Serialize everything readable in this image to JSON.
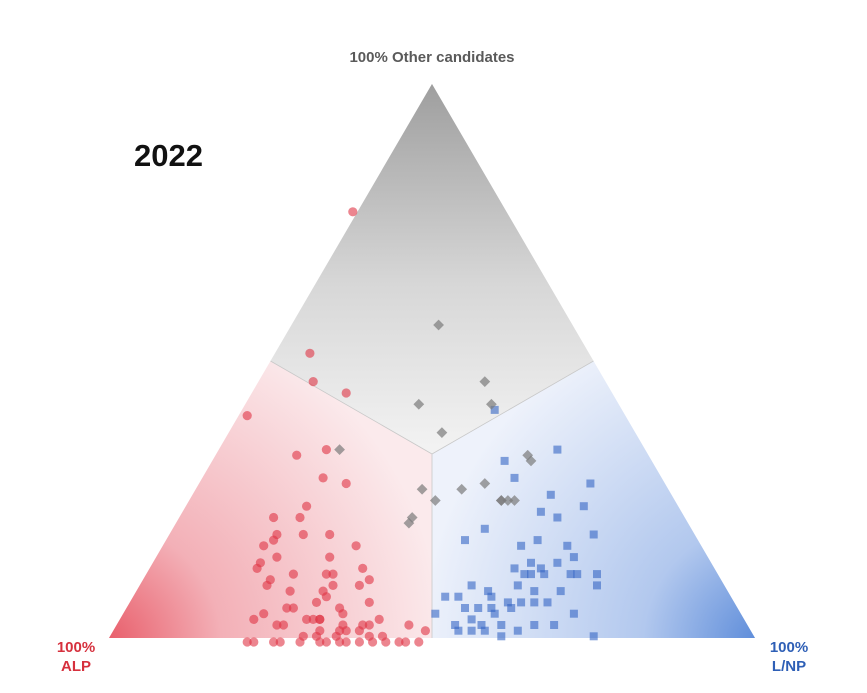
{
  "year": "2022",
  "vertices": {
    "top": "100% Other candidates",
    "left_line1": "100%",
    "left_line2": "ALP",
    "right_line1": "100%",
    "right_line2": "L/NP"
  },
  "colors": {
    "alp": "#e03344",
    "lnp": "#3566c4",
    "other": "#7a7a7a"
  },
  "chart_data": {
    "type": "scatter",
    "title": "2022",
    "coordinate_system": "ternary",
    "axes": [
      "ALP share",
      "L/NP share",
      "Other candidates share"
    ],
    "ranges": [
      [
        0,
        1
      ],
      [
        0,
        1
      ],
      [
        0,
        1
      ]
    ],
    "series": [
      {
        "name": "ALP",
        "marker": "circle",
        "points": [
          [
            0.24,
            0.0,
            0.76
          ],
          [
            0.45,
            0.09,
            0.46
          ],
          [
            0.43,
            0.06,
            0.51
          ],
          [
            0.58,
            0.02,
            0.4
          ],
          [
            0.41,
            0.15,
            0.44
          ],
          [
            0.54,
            0.13,
            0.33
          ],
          [
            0.49,
            0.17,
            0.34
          ],
          [
            0.52,
            0.19,
            0.29
          ],
          [
            0.49,
            0.23,
            0.28
          ],
          [
            0.57,
            0.19,
            0.24
          ],
          [
            0.59,
            0.19,
            0.22
          ],
          [
            0.63,
            0.15,
            0.22
          ],
          [
            0.6,
            0.21,
            0.19
          ],
          [
            0.64,
            0.17,
            0.19
          ],
          [
            0.65,
            0.17,
            0.18
          ],
          [
            0.56,
            0.25,
            0.19
          ],
          [
            0.67,
            0.16,
            0.17
          ],
          [
            0.53,
            0.3,
            0.17
          ],
          [
            0.58,
            0.27,
            0.15
          ],
          [
            0.66,
            0.19,
            0.15
          ],
          [
            0.69,
            0.17,
            0.14
          ],
          [
            0.7,
            0.17,
            0.13
          ],
          [
            0.54,
            0.33,
            0.13
          ],
          [
            0.59,
            0.29,
            0.12
          ],
          [
            0.65,
            0.23,
            0.12
          ],
          [
            0.6,
            0.28,
            0.12
          ],
          [
            0.69,
            0.2,
            0.11
          ],
          [
            0.54,
            0.35,
            0.11
          ],
          [
            0.6,
            0.3,
            0.1
          ],
          [
            0.7,
            0.2,
            0.1
          ],
          [
            0.56,
            0.34,
            0.1
          ],
          [
            0.67,
            0.24,
            0.09
          ],
          [
            0.62,
            0.29,
            0.09
          ],
          [
            0.62,
            0.3,
            0.08
          ],
          [
            0.64,
            0.29,
            0.07
          ],
          [
            0.56,
            0.37,
            0.07
          ],
          [
            0.61,
            0.33,
            0.06
          ],
          [
            0.69,
            0.25,
            0.06
          ],
          [
            0.61,
            0.34,
            0.05
          ],
          [
            0.73,
            0.22,
            0.05
          ],
          [
            0.75,
            0.21,
            0.04
          ],
          [
            0.67,
            0.29,
            0.04
          ],
          [
            0.56,
            0.4,
            0.04
          ],
          [
            0.65,
            0.31,
            0.04
          ],
          [
            0.72,
            0.25,
            0.03
          ],
          [
            0.52,
            0.45,
            0.03
          ],
          [
            0.58,
            0.39,
            0.03
          ],
          [
            0.5,
            0.48,
            0.02
          ],
          [
            0.62,
            0.36,
            0.02
          ],
          [
            0.67,
            0.32,
            0.01
          ],
          [
            0.64,
            0.35,
            0.01
          ],
          [
            0.59,
            0.41,
            0.0
          ],
          [
            0.54,
            0.46,
            0.0
          ],
          [
            0.57,
            0.43,
            0.0
          ],
          [
            0.61,
            0.39,
            0.0
          ],
          [
            0.66,
            0.34,
            0.0
          ],
          [
            0.7,
            0.3,
            0.0
          ],
          [
            0.74,
            0.26,
            0.0
          ],
          [
            0.77,
            0.23,
            0.0
          ],
          [
            0.64,
            0.36,
            0.0
          ],
          [
            0.67,
            0.33,
            0.0
          ],
          [
            0.55,
            0.45,
            0.0
          ],
          [
            0.52,
            0.48,
            0.0
          ],
          [
            0.63,
            0.37,
            0.0
          ],
          [
            0.73,
            0.27,
            0.0
          ],
          [
            0.78,
            0.22,
            0.0
          ],
          [
            0.66,
            0.32,
            0.02
          ],
          [
            0.62,
            0.35,
            0.03
          ],
          [
            0.59,
            0.38,
            0.03
          ],
          [
            0.65,
            0.31,
            0.04
          ],
          [
            0.71,
            0.26,
            0.03
          ],
          [
            0.63,
            0.35,
            0.02
          ],
          [
            0.59,
            0.4,
            0.01
          ],
          [
            0.69,
            0.3,
            0.01
          ],
          [
            0.57,
            0.42,
            0.01
          ],
          [
            0.6,
            0.38,
            0.02
          ],
          [
            0.66,
            0.3,
            0.04
          ],
          [
            0.68,
            0.26,
            0.06
          ]
        ]
      },
      {
        "name": "L/NP",
        "marker": "square",
        "points": [
          [
            0.2,
            0.39,
            0.41
          ],
          [
            0.14,
            0.52,
            0.34
          ],
          [
            0.23,
            0.45,
            0.32
          ],
          [
            0.12,
            0.6,
            0.28
          ],
          [
            0.23,
            0.48,
            0.29
          ],
          [
            0.19,
            0.55,
            0.26
          ],
          [
            0.15,
            0.61,
            0.24
          ],
          [
            0.22,
            0.55,
            0.23
          ],
          [
            0.2,
            0.58,
            0.22
          ],
          [
            0.32,
            0.48,
            0.2
          ],
          [
            0.16,
            0.65,
            0.19
          ],
          [
            0.36,
            0.46,
            0.18
          ],
          [
            0.25,
            0.57,
            0.18
          ],
          [
            0.28,
            0.55,
            0.17
          ],
          [
            0.21,
            0.64,
            0.15
          ],
          [
            0.28,
            0.58,
            0.14
          ],
          [
            0.31,
            0.56,
            0.13
          ],
          [
            0.19,
            0.69,
            0.12
          ],
          [
            0.23,
            0.65,
            0.12
          ],
          [
            0.39,
            0.51,
            0.1
          ],
          [
            0.32,
            0.58,
            0.1
          ],
          [
            0.2,
            0.7,
            0.1
          ],
          [
            0.3,
            0.61,
            0.09
          ],
          [
            0.37,
            0.54,
            0.09
          ],
          [
            0.44,
            0.48,
            0.08
          ],
          [
            0.29,
            0.64,
            0.07
          ],
          [
            0.4,
            0.54,
            0.06
          ],
          [
            0.35,
            0.59,
            0.06
          ],
          [
            0.38,
            0.57,
            0.05
          ],
          [
            0.26,
            0.69,
            0.05
          ],
          [
            0.42,
            0.54,
            0.04
          ],
          [
            0.3,
            0.67,
            0.03
          ],
          [
            0.45,
            0.53,
            0.02
          ],
          [
            0.36,
            0.62,
            0.02
          ],
          [
            0.39,
            0.6,
            0.01
          ],
          [
            0.25,
            0.74,
            0.01
          ],
          [
            0.43,
            0.55,
            0.02
          ],
          [
            0.38,
            0.59,
            0.03
          ],
          [
            0.42,
            0.52,
            0.06
          ],
          [
            0.47,
            0.48,
            0.05
          ],
          [
            0.41,
            0.56,
            0.03
          ],
          [
            0.33,
            0.64,
            0.03
          ],
          [
            0.45,
            0.52,
            0.03
          ],
          [
            0.41,
            0.57,
            0.02
          ],
          [
            0.26,
            0.65,
            0.09
          ],
          [
            0.38,
            0.56,
            0.06
          ],
          [
            0.31,
            0.62,
            0.07
          ],
          [
            0.21,
            0.62,
            0.17
          ],
          [
            0.27,
            0.6,
            0.13
          ],
          [
            0.29,
            0.59,
            0.12
          ],
          [
            0.24,
            0.62,
            0.14
          ],
          [
            0.27,
            0.61,
            0.12
          ],
          [
            0.33,
            0.6,
            0.07
          ],
          [
            0.35,
            0.58,
            0.07
          ],
          [
            0.22,
            0.66,
            0.12
          ],
          [
            0.3,
            0.58,
            0.12
          ],
          [
            0.42,
            0.5,
            0.08
          ],
          [
            0.37,
            0.55,
            0.08
          ]
        ]
      },
      {
        "name": "Other candidates",
        "marker": "diamond",
        "points": [
          [
            0.3,
            0.33,
            0.37
          ],
          [
            0.21,
            0.23,
            0.56
          ],
          [
            0.31,
            0.27,
            0.42
          ],
          [
            0.38,
            0.35,
            0.27
          ],
          [
            0.37,
            0.38,
            0.25
          ],
          [
            0.19,
            0.35,
            0.46
          ],
          [
            0.2,
            0.38,
            0.42
          ],
          [
            0.28,
            0.44,
            0.28
          ],
          [
            0.27,
            0.48,
            0.25
          ],
          [
            0.27,
            0.48,
            0.25
          ],
          [
            0.26,
            0.49,
            0.25
          ],
          [
            0.25,
            0.5,
            0.25
          ],
          [
            0.19,
            0.49,
            0.32
          ],
          [
            0.19,
            0.48,
            0.33
          ],
          [
            0.47,
            0.19,
            0.34
          ],
          [
            0.32,
            0.41,
            0.27
          ],
          [
            0.43,
            0.36,
            0.21
          ],
          [
            0.42,
            0.36,
            0.22
          ]
        ]
      }
    ]
  }
}
